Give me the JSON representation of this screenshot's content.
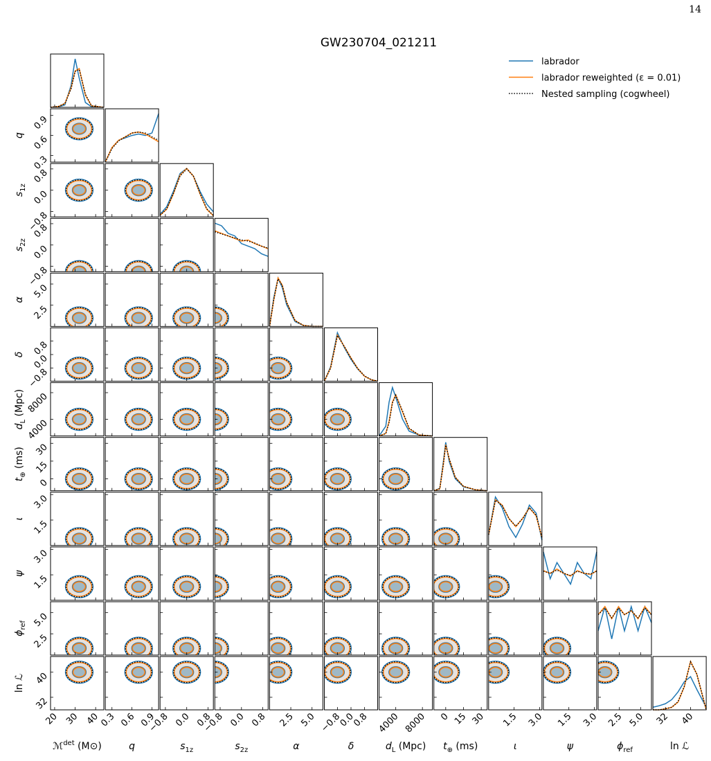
{
  "page_number": "14",
  "chart_data": {
    "type": "corner",
    "title": "GW230704_021211",
    "legend": {
      "loc": "upper right",
      "series": [
        {
          "name": "labrador",
          "color": "#1f77b4",
          "linestyle": "solid"
        },
        {
          "name": "labrador reweighted (ε = 0.01)",
          "color": "#ff7f0e",
          "linestyle": "solid"
        },
        {
          "name": "Nested sampling (cogwheel)",
          "color": "#000000",
          "linestyle": "dotted"
        }
      ]
    },
    "parameters": [
      {
        "label": {
          "base": "ℳ",
          "sup": "det",
          "unit": " (M⊙)"
        },
        "lim": [
          18,
          44
        ],
        "ticks": [
          20,
          30,
          40
        ],
        "x": [
          18,
          22,
          25,
          28,
          30,
          32,
          35,
          38,
          44
        ],
        "curves": [
          [
            0,
            0.01,
            0.05,
            0.45,
            1.0,
            0.6,
            0.1,
            0.01,
            0
          ],
          [
            0,
            0.02,
            0.08,
            0.4,
            0.75,
            0.8,
            0.25,
            0.03,
            0
          ],
          [
            0,
            0.02,
            0.08,
            0.38,
            0.74,
            0.78,
            0.27,
            0.03,
            0
          ]
        ]
      },
      {
        "label": {
          "base": "q"
        },
        "lim": [
          0.2,
          1.0
        ],
        "ticks": [
          0.3,
          0.6,
          0.9
        ],
        "x": [
          0.2,
          0.3,
          0.4,
          0.5,
          0.6,
          0.7,
          0.8,
          0.9,
          1.0
        ],
        "curves": [
          [
            0,
            0.3,
            0.45,
            0.5,
            0.55,
            0.58,
            0.55,
            0.6,
            1.0
          ],
          [
            0,
            0.3,
            0.45,
            0.52,
            0.6,
            0.62,
            0.58,
            0.5,
            0.42
          ],
          [
            0,
            0.28,
            0.44,
            0.52,
            0.6,
            0.62,
            0.6,
            0.52,
            0.45
          ]
        ]
      },
      {
        "label": {
          "base": "s",
          "sub": "1z"
        },
        "lim": [
          -1,
          1
        ],
        "ticks": [
          {
            "value": -0.8,
            "label": "−0.8"
          },
          {
            "value": 0,
            "label": "0.0"
          },
          0.8
        ],
        "x": [
          -1,
          -0.75,
          -0.5,
          -0.25,
          0,
          0.25,
          0.5,
          0.75,
          1
        ],
        "curves": [
          [
            0.05,
            0.2,
            0.5,
            0.85,
            0.95,
            0.8,
            0.5,
            0.25,
            0.1
          ],
          [
            0.03,
            0.15,
            0.45,
            0.82,
            0.95,
            0.8,
            0.45,
            0.15,
            0.02
          ],
          [
            0.03,
            0.16,
            0.46,
            0.8,
            0.94,
            0.8,
            0.46,
            0.16,
            0.03
          ]
        ]
      },
      {
        "label": {
          "base": "s",
          "sub": "2z"
        },
        "lim": [
          -1,
          1
        ],
        "ticks": [
          {
            "value": -0.8,
            "label": "−0.8"
          },
          {
            "value": 0,
            "label": "0.0"
          },
          0.8
        ],
        "x": [
          -1,
          -0.75,
          -0.5,
          -0.25,
          0,
          0.25,
          0.5,
          0.75,
          1
        ],
        "curves": [
          [
            0.95,
            0.9,
            0.75,
            0.7,
            0.55,
            0.5,
            0.45,
            0.35,
            0.3
          ],
          [
            0.8,
            0.75,
            0.7,
            0.65,
            0.6,
            0.62,
            0.55,
            0.5,
            0.45
          ],
          [
            0.78,
            0.74,
            0.7,
            0.66,
            0.62,
            0.6,
            0.56,
            0.5,
            0.46
          ]
        ]
      },
      {
        "label": {
          "base": "α"
        },
        "lim": [
          0,
          6.28
        ],
        "ticks": [
          2.5,
          {
            "value": 5,
            "label": "5.0"
          }
        ],
        "x": [
          0,
          0.5,
          1,
          1.5,
          2,
          3,
          4,
          5,
          6.28
        ],
        "curves": [
          [
            0,
            0.6,
            1.0,
            0.8,
            0.45,
            0.1,
            0.02,
            0,
            0
          ],
          [
            0,
            0.55,
            1.0,
            0.85,
            0.5,
            0.12,
            0.02,
            0,
            0
          ],
          [
            0,
            0.56,
            0.98,
            0.84,
            0.5,
            0.12,
            0.02,
            0,
            0
          ]
        ]
      },
      {
        "label": {
          "base": "δ"
        },
        "lim": [
          -1.57,
          1.57
        ],
        "ticks": [
          {
            "value": -0.8,
            "label": "−0.8"
          },
          {
            "value": 0,
            "label": "0.0"
          },
          0.8
        ],
        "x": [
          -1.57,
          -1.2,
          -0.8,
          -0.4,
          0,
          0.4,
          0.8,
          1.2,
          1.57
        ],
        "curves": [
          [
            0,
            0.3,
            1.0,
            0.7,
            0.45,
            0.25,
            0.1,
            0.03,
            0
          ],
          [
            0,
            0.28,
            0.95,
            0.72,
            0.48,
            0.26,
            0.1,
            0.03,
            0
          ],
          [
            0,
            0.27,
            0.94,
            0.72,
            0.47,
            0.26,
            0.11,
            0.03,
            0
          ]
        ]
      },
      {
        "label": {
          "base": "d",
          "sub": "L",
          "unit": " (Mpc)"
        },
        "lim": [
          1500,
          9500
        ],
        "ticks": [
          4000,
          8000
        ],
        "x": [
          1500,
          2500,
          3000,
          3500,
          4000,
          5000,
          6000,
          7500,
          9500
        ],
        "curves": [
          [
            0,
            0.2,
            0.7,
            1.0,
            0.8,
            0.35,
            0.1,
            0.02,
            0
          ],
          [
            0,
            0.05,
            0.3,
            0.7,
            0.85,
            0.5,
            0.15,
            0.02,
            0
          ],
          [
            0,
            0.05,
            0.28,
            0.68,
            0.84,
            0.52,
            0.16,
            0.02,
            0
          ]
        ]
      },
      {
        "label": {
          "base": "t",
          "sub": "⊕",
          "unit": " (ms)"
        },
        "lim": [
          -10,
          35
        ],
        "ticks": [
          0,
          15,
          30
        ],
        "x": [
          -10,
          -5,
          -2,
          0,
          3,
          8,
          15,
          25,
          35
        ],
        "curves": [
          [
            0,
            0.05,
            0.6,
            1.0,
            0.6,
            0.25,
            0.08,
            0.02,
            0
          ],
          [
            0,
            0.04,
            0.55,
            0.95,
            0.65,
            0.28,
            0.09,
            0.02,
            0
          ],
          [
            0,
            0.04,
            0.54,
            0.94,
            0.66,
            0.28,
            0.09,
            0.02,
            0
          ]
        ]
      },
      {
        "label": {
          "base": "ι"
        },
        "lim": [
          0,
          3.14
        ],
        "ticks": [
          1.5,
          {
            "value": 3,
            "label": "3.0"
          }
        ],
        "x": [
          0,
          0.4,
          0.8,
          1.2,
          1.6,
          2.0,
          2.4,
          2.8,
          3.14
        ],
        "curves": [
          [
            0.2,
            0.9,
            0.7,
            0.35,
            0.15,
            0.4,
            0.75,
            0.6,
            0.1
          ],
          [
            0.2,
            0.85,
            0.75,
            0.5,
            0.35,
            0.5,
            0.7,
            0.55,
            0.15
          ],
          [
            0.2,
            0.84,
            0.74,
            0.5,
            0.36,
            0.5,
            0.7,
            0.56,
            0.15
          ]
        ]
      },
      {
        "label": {
          "base": "ψ"
        },
        "lim": [
          0,
          3.14
        ],
        "ticks": [
          1.5,
          {
            "value": 3,
            "label": "3.0"
          }
        ],
        "x": [
          0,
          0.4,
          0.8,
          1.2,
          1.6,
          2.0,
          2.4,
          2.8,
          3.14
        ],
        "curves": [
          [
            0.9,
            0.4,
            0.7,
            0.5,
            0.3,
            0.7,
            0.5,
            0.4,
            0.9
          ],
          [
            0.55,
            0.5,
            0.58,
            0.5,
            0.45,
            0.55,
            0.5,
            0.48,
            0.55
          ],
          [
            0.54,
            0.5,
            0.56,
            0.5,
            0.46,
            0.54,
            0.5,
            0.49,
            0.54
          ]
        ]
      },
      {
        "label": {
          "base": "ϕ",
          "sub": "ref"
        },
        "lim": [
          0,
          6.28
        ],
        "ticks": [
          2.5,
          {
            "value": 5,
            "label": "5.0"
          }
        ],
        "x": [
          0,
          0.8,
          1.6,
          2.4,
          3.1,
          3.9,
          4.7,
          5.5,
          6.28
        ],
        "curves": [
          [
            0.3,
            0.6,
            0.2,
            0.6,
            0.3,
            0.6,
            0.3,
            0.6,
            0.4
          ],
          [
            0.5,
            0.6,
            0.45,
            0.6,
            0.5,
            0.55,
            0.45,
            0.6,
            0.5
          ],
          [
            0.5,
            0.58,
            0.46,
            0.58,
            0.5,
            0.55,
            0.46,
            0.58,
            0.5
          ]
        ]
      },
      {
        "label": {
          "base": "ln ℒ"
        },
        "lim": [
          28,
          45
        ],
        "ticks": [
          32,
          40
        ],
        "x": [
          28,
          30,
          32,
          34,
          36,
          38,
          40,
          42,
          45
        ],
        "curves": [
          [
            0.05,
            0.08,
            0.12,
            0.2,
            0.35,
            0.55,
            0.65,
            0.4,
            0.05
          ],
          [
            0,
            0,
            0.02,
            0.05,
            0.15,
            0.45,
            0.95,
            0.7,
            0
          ],
          [
            0,
            0,
            0.02,
            0.05,
            0.16,
            0.46,
            0.94,
            0.7,
            0
          ]
        ]
      }
    ]
  }
}
